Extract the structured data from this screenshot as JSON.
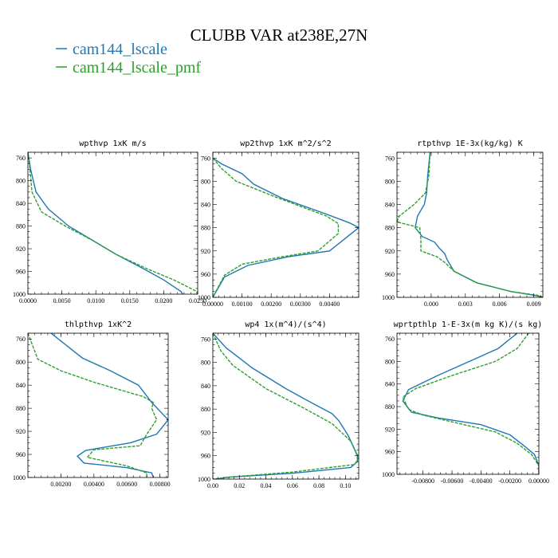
{
  "figure": {
    "title": "CLUBB VAR at238E,27N"
  },
  "legend": [
    {
      "label": "cam144_lscale",
      "color": "#1f77b4"
    },
    {
      "label": "cam144_lscale_pmf",
      "color": "#2ca02c"
    }
  ],
  "colors": {
    "series1": "#1f77b4",
    "series2": "#2ca02c"
  },
  "chart_data": [
    {
      "type": "line",
      "title": "wpthvp  1xK m/s",
      "xlim": [
        0.0,
        0.025
      ],
      "ylim": [
        1000,
        750
      ],
      "xticks": [
        0.0,
        0.005,
        0.01,
        0.015,
        0.02,
        0.025
      ],
      "xtick_labels": [
        "0.0000",
        "0.0050",
        "0.0100",
        "0.0150",
        "0.0200",
        "0.0250"
      ],
      "yticks": [
        760,
        800,
        840,
        880,
        920,
        960,
        1000
      ],
      "series": [
        {
          "name": "cam144_lscale",
          "x": [
            0.0,
            0.0004,
            0.0012,
            0.003,
            0.006,
            0.0095,
            0.013,
            0.017,
            0.02,
            0.0225,
            0.0228
          ],
          "y": [
            750,
            780,
            820,
            850,
            880,
            905,
            930,
            955,
            975,
            995,
            1000
          ]
        },
        {
          "name": "cam144_lscale_pmf",
          "x": [
            0.0,
            0.0003,
            0.0006,
            0.002,
            0.0055,
            0.0095,
            0.013,
            0.0175,
            0.0215,
            0.0248,
            0.025
          ],
          "y": [
            750,
            780,
            820,
            855,
            880,
            905,
            930,
            955,
            975,
            995,
            1000
          ]
        }
      ]
    },
    {
      "type": "line",
      "title": "wp2thvp  1xK m^2/s^2",
      "xlim": [
        0.0,
        0.005
      ],
      "ylim": [
        1000,
        750
      ],
      "xticks": [
        0.0,
        0.001,
        0.002,
        0.003,
        0.004
      ],
      "xtick_labels": [
        "0.00000",
        "0.00100",
        "0.00200",
        "0.00300",
        "0.00400"
      ],
      "yticks": [
        760,
        800,
        840,
        880,
        920,
        960,
        1000
      ],
      "series": [
        {
          "name": "cam144_lscale",
          "x": [
            0.0,
            0.0003,
            0.001,
            0.0014,
            0.0024,
            0.0038,
            0.0047,
            0.005,
            0.004,
            0.0026,
            0.0012,
            0.0004,
            0.0
          ],
          "y": [
            760,
            770,
            787,
            805,
            830,
            855,
            872,
            880,
            920,
            930,
            945,
            965,
            1000
          ]
        },
        {
          "name": "cam144_lscale_pmf",
          "x": [
            0.0,
            0.0003,
            0.0008,
            0.0022,
            0.0039,
            0.0043,
            0.0043,
            0.0036,
            0.0024,
            0.001,
            0.0004,
            0.0
          ],
          "y": [
            760,
            778,
            800,
            828,
            860,
            873,
            890,
            920,
            930,
            943,
            962,
            1000
          ]
        }
      ]
    },
    {
      "type": "line",
      "title": "rtpthvp  1E-3x(kg/kg) K",
      "xlim": [
        -0.003,
        0.0098
      ],
      "ylim": [
        1000,
        750
      ],
      "xticks": [
        0.0,
        0.003,
        0.006,
        0.009
      ],
      "xtick_labels": [
        "0.000",
        "0.003",
        "0.006",
        "0.009"
      ],
      "yticks": [
        760,
        800,
        840,
        880,
        920,
        960,
        1000
      ],
      "series": [
        {
          "name": "cam144_lscale",
          "x": [
            -0.0001,
            -0.0003,
            -0.0004,
            -0.0006,
            -0.0012,
            -0.0014,
            -0.0008,
            0.0003,
            0.0007,
            0.0012,
            0.0014,
            0.002,
            0.004,
            0.007,
            0.0092,
            0.0098
          ],
          "y": [
            750,
            790,
            820,
            840,
            860,
            880,
            895,
            905,
            915,
            925,
            935,
            955,
            975,
            990,
            997,
            1000
          ]
        },
        {
          "name": "cam144_lscale_pmf",
          "x": [
            -0.0001,
            -0.0002,
            -0.0005,
            -0.0015,
            -0.0028,
            -0.003,
            -0.001,
            -0.0009,
            -0.0009,
            0.0005,
            0.0012,
            0.002,
            0.004,
            0.007,
            0.0095,
            0.0098
          ],
          "y": [
            750,
            790,
            820,
            840,
            860,
            870,
            880,
            900,
            920,
            930,
            940,
            955,
            975,
            990,
            997,
            1000
          ]
        }
      ]
    },
    {
      "type": "line",
      "title": "thlpthvp  1xK^2",
      "xlim": [
        0.0,
        0.0085
      ],
      "ylim": [
        1000,
        750
      ],
      "xticks": [
        0.002,
        0.004,
        0.006,
        0.008
      ],
      "xtick_labels": [
        "0.00200",
        "0.00400",
        "0.00600",
        "0.00800"
      ],
      "yticks": [
        760,
        800,
        840,
        880,
        920,
        960,
        1000
      ],
      "series": [
        {
          "name": "cam144_lscale",
          "x": [
            0.0014,
            0.0033,
            0.005,
            0.0067,
            0.0075,
            0.0085,
            0.0078,
            0.0062,
            0.0035,
            0.003,
            0.0034,
            0.006,
            0.0075,
            0.0076
          ],
          "y": [
            750,
            793,
            815,
            840,
            870,
            900,
            925,
            940,
            953,
            963,
            975,
            983,
            992,
            1000
          ]
        },
        {
          "name": "cam144_lscale_pmf",
          "x": [
            0.0,
            0.0006,
            0.002,
            0.004,
            0.007,
            0.0076,
            0.0075,
            0.0078,
            0.0072,
            0.0068,
            0.004,
            0.0036,
            0.006,
            0.0072,
            0.0072
          ],
          "y": [
            750,
            795,
            815,
            835,
            860,
            870,
            880,
            900,
            925,
            945,
            952,
            965,
            980,
            992,
            1000
          ]
        }
      ]
    },
    {
      "type": "line",
      "title": "wp4  1x(m^4)/(s^4)",
      "xlim": [
        0.0,
        0.11
      ],
      "ylim": [
        1000,
        750
      ],
      "xticks": [
        0.0,
        0.02,
        0.04,
        0.06,
        0.08,
        0.1
      ],
      "xtick_labels": [
        "0.00",
        "0.02",
        "0.04",
        "0.06",
        "0.08",
        "0.10"
      ],
      "yticks": [
        760,
        800,
        840,
        880,
        920,
        960,
        1000
      ],
      "series": [
        {
          "name": "cam144_lscale",
          "x": [
            0.0,
            0.01,
            0.03,
            0.055,
            0.075,
            0.09,
            0.095,
            0.102,
            0.109,
            0.109,
            0.104,
            0.06,
            0.01,
            0.003
          ],
          "y": [
            750,
            775,
            810,
            845,
            870,
            888,
            900,
            925,
            960,
            970,
            980,
            990,
            997,
            1000
          ]
        },
        {
          "name": "cam144_lscale_pmf",
          "x": [
            0.0,
            0.006,
            0.015,
            0.04,
            0.07,
            0.09,
            0.104,
            0.11,
            0.107,
            0.06,
            0.015,
            0.0
          ],
          "y": [
            750,
            780,
            805,
            845,
            880,
            905,
            935,
            963,
            975,
            988,
            996,
            1000
          ]
        }
      ]
    },
    {
      "type": "line",
      "title": "wprtpthlp  1-E-3x(m kg K)/(s kg)",
      "xlim": [
        -0.0098,
        0.0
      ],
      "ylim": [
        1000,
        750
      ],
      "xticks": [
        -0.008,
        -0.006,
        -0.004,
        -0.002,
        0.0
      ],
      "xtick_labels": [
        "-0.00800",
        "-0.00600",
        "-0.00400",
        "-0.00200",
        "0.00000"
      ],
      "yticks": [
        760,
        800,
        840,
        880,
        920,
        960,
        1000
      ],
      "series": [
        {
          "name": "cam144_lscale",
          "x": [
            -0.0015,
            -0.0028,
            -0.0048,
            -0.007,
            -0.009,
            -0.0094,
            -0.0088,
            -0.007,
            -0.004,
            -0.002,
            -0.001,
            -0.0003,
            0.0,
            0.0
          ],
          "y": [
            750,
            777,
            800,
            825,
            850,
            870,
            890,
            900,
            912,
            930,
            950,
            965,
            985,
            1000
          ]
        },
        {
          "name": "cam144_lscale_pmf",
          "x": [
            -0.0007,
            -0.0015,
            -0.003,
            -0.006,
            -0.0085,
            -0.0094,
            -0.009,
            -0.008,
            -0.0055,
            -0.003,
            -0.0015,
            -0.0005,
            0.0,
            0.0
          ],
          "y": [
            750,
            777,
            800,
            825,
            848,
            863,
            885,
            895,
            910,
            925,
            945,
            965,
            985,
            1000
          ]
        }
      ]
    }
  ]
}
